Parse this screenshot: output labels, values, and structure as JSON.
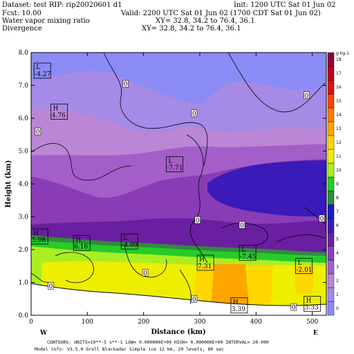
{
  "header": {
    "dataset": "Dataset: test  RIP: rip20020601 d1",
    "init": "Init: 1200 UTC Sat 01 Jun 02",
    "fcst": "Fcst:    10.00",
    "valid": "Valid: 2200 UTC Sat 01 Jun 02 (1700 CDT Sat 01 Jun 02)",
    "field1": "Water vapor mixing ratio",
    "field1_xy": "XY=   32.8, 34.2 to   76.4, 36.1",
    "field2": "Divergence",
    "field2_xy": "XY=   32.8, 34.2 to   76.4, 36.1"
  },
  "footer": {
    "line1": "CONTOURS:  UNITS=10**-5 s**-1   LOW= 0.000000E+00  HIGH= 0.000000E+00  INTERVAL=    20.000",
    "line2": "Model info: V3.5.0   Grell     Blackadar  Simple ice     12 km,   29 levels,    80 sec"
  },
  "chart_data": {
    "type": "heatmap",
    "xlabel": "Distance  (km)",
    "ylabel": "Height  (km)",
    "xlim": [
      0,
      525
    ],
    "ylim": [
      0,
      8
    ],
    "x_ticks": [
      "0",
      "100",
      "200",
      "300",
      "400",
      "500"
    ],
    "y_ticks": [
      "0.0",
      "1.0",
      "2.0",
      "3.0",
      "4.0",
      "5.0",
      "6.0",
      "7.0",
      "8.0"
    ],
    "left_end_label": "W",
    "right_end_label": "E",
    "colorbar": {
      "unit": "g kg-1",
      "levels": [
        "0",
        "1",
        "2",
        "3",
        "4",
        "5",
        "6",
        "7",
        "8",
        "9",
        "10",
        "11",
        "12",
        "13",
        "14",
        "15",
        "16",
        "17",
        "18"
      ],
      "colors": [
        "#8b8bf5",
        "#a58ae6",
        "#bb86d6",
        "#a45ec8",
        "#8a3cb6",
        "#6a1fa0",
        "#3a1ab8",
        "#1a1ad0",
        "#2f8c3a",
        "#26cc2a",
        "#aaee22",
        "#eeee00",
        "#ffd700",
        "#ffa500",
        "#ff7a00",
        "#ff4000",
        "#e01010",
        "#c00020",
        "#900040"
      ]
    },
    "extrema": [
      {
        "type": "L",
        "value": "-4.27",
        "x": 20,
        "y": 7.45
      },
      {
        "type": "H",
        "value": "4.76",
        "x": 50,
        "y": 6.2
      },
      {
        "type": "L",
        "value": "-7.71",
        "x": 255,
        "y": 4.6
      },
      {
        "type": "H",
        "value": "5.08",
        "x": 15,
        "y": 2.4
      },
      {
        "type": "H",
        "value": "6.16",
        "x": 90,
        "y": 2.2
      },
      {
        "type": "L",
        "value": "-4.09",
        "x": 175,
        "y": 2.25
      },
      {
        "type": "H",
        "value": "7.31",
        "x": 310,
        "y": 1.6
      },
      {
        "type": "L",
        "value": "-7.45",
        "x": 385,
        "y": 1.9
      },
      {
        "type": "L",
        "value": "-2.01",
        "x": 485,
        "y": 1.5
      },
      {
        "type": "H",
        "value": "3.39",
        "x": 370,
        "y": 0.3
      },
      {
        "type": "H",
        "value": "3.33",
        "x": 500,
        "y": 0.35
      }
    ],
    "zero_labels": [
      {
        "text": "0",
        "x": 168,
        "y": 7.05
      },
      {
        "text": "0",
        "x": 490,
        "y": 6.7
      },
      {
        "text": "0",
        "x": 290,
        "y": 6.15
      },
      {
        "text": "0",
        "x": 12,
        "y": 5.6
      },
      {
        "text": "0",
        "x": 296,
        "y": 2.9
      },
      {
        "text": "0",
        "x": 375,
        "y": 2.75
      },
      {
        "text": "0",
        "x": 517,
        "y": 2.95
      },
      {
        "text": "0",
        "x": 203,
        "y": 1.3
      },
      {
        "text": "0",
        "x": 35,
        "y": 0.9
      },
      {
        "text": "0",
        "x": 290,
        "y": 0.5
      },
      {
        "text": "0",
        "x": 467,
        "y": 0.25
      }
    ]
  }
}
